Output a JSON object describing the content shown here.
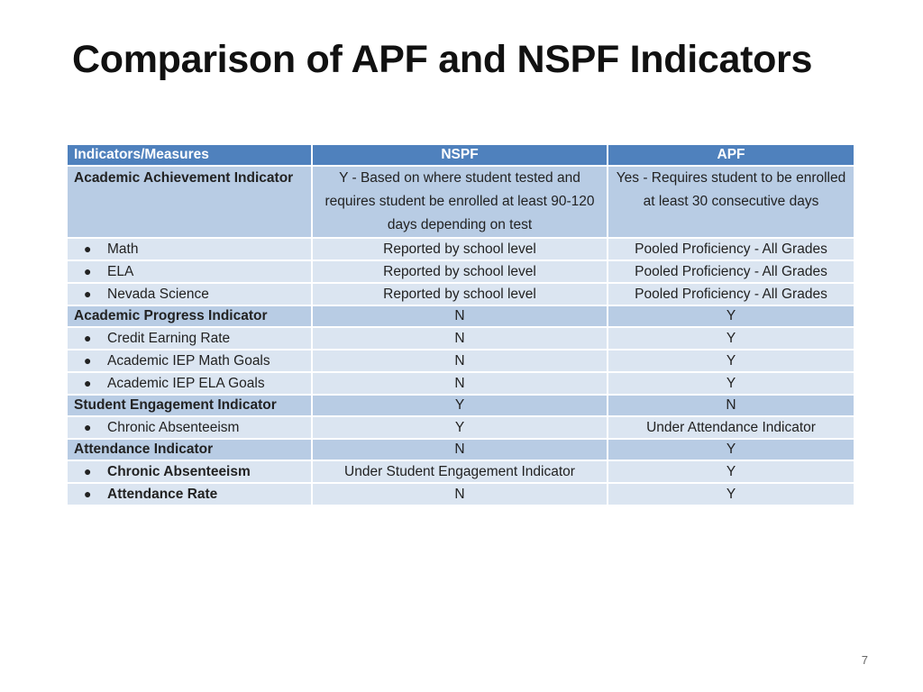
{
  "slide": {
    "title": "Comparison of APF and NSPF Indicators",
    "page_number": "7"
  },
  "table": {
    "headers": [
      "Indicators/Measures",
      "NSPF",
      "APF"
    ],
    "rows": [
      {
        "type": "section",
        "label": "Academic Achievement Indicator",
        "nspf": "Y - Based on where student tested and requires student be enrolled at least 90-120 days depending on test",
        "apf": "Yes - Requires student to be enrolled at least 30 consecutive days"
      },
      {
        "type": "item",
        "label": "Math",
        "nspf": "Reported by school level",
        "apf": "Pooled Proficiency - All Grades"
      },
      {
        "type": "item",
        "label": "ELA",
        "nspf": "Reported by school level",
        "apf": "Pooled Proficiency - All Grades"
      },
      {
        "type": "item",
        "label": "Nevada Science",
        "nspf": "Reported by school level",
        "apf": "Pooled Proficiency - All Grades"
      },
      {
        "type": "section",
        "label": "Academic Progress Indicator",
        "nspf": "N",
        "apf": "Y"
      },
      {
        "type": "item",
        "label": "Credit Earning Rate",
        "nspf": "N",
        "apf": "Y"
      },
      {
        "type": "item",
        "label": "Academic IEP Math Goals",
        "nspf": "N",
        "apf": "Y"
      },
      {
        "type": "item",
        "label": "Academic IEP ELA Goals",
        "nspf": "N",
        "apf": "Y"
      },
      {
        "type": "section",
        "label": "Student Engagement Indicator",
        "nspf": "Y",
        "apf": "N"
      },
      {
        "type": "item",
        "label": "Chronic Absenteeism",
        "nspf": "Y",
        "apf": "Under Attendance Indicator"
      },
      {
        "type": "section",
        "label": "Attendance Indicator",
        "nspf": "N",
        "apf": "Y"
      },
      {
        "type": "item",
        "label": "Chronic Absenteeism",
        "nspf": "Under Student Engagement Indicator",
        "apf": "Y"
      },
      {
        "type": "item",
        "label": "Attendance Rate",
        "nspf": "N",
        "apf": "Y"
      }
    ]
  }
}
